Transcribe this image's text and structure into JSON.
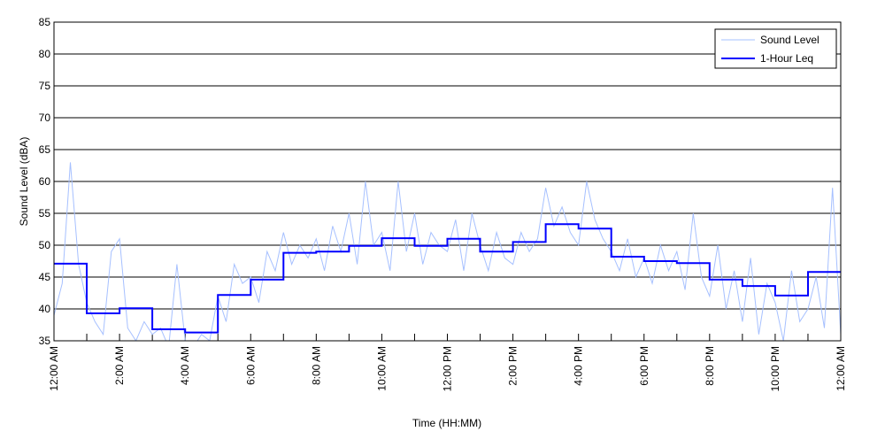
{
  "chart_data": {
    "type": "line",
    "title": "",
    "xlabel": "Time (HH:MM)",
    "ylabel": "Sound Level (dBA)",
    "ylim": [
      35,
      85
    ],
    "yticks": [
      35,
      40,
      45,
      50,
      55,
      60,
      65,
      70,
      75,
      80,
      85
    ],
    "xlim_hours": [
      0,
      24
    ],
    "xtick_labels": [
      "12:00 AM",
      "2:00 AM",
      "4:00 AM",
      "6:00 AM",
      "8:00 AM",
      "10:00 AM",
      "12:00 PM",
      "2:00 PM",
      "4:00 PM",
      "6:00 PM",
      "8:00 PM",
      "10:00 PM",
      "12:00 AM"
    ],
    "grid": "horizontal",
    "legend_placement": "top-right",
    "series": [
      {
        "name": "Sound Level",
        "color": "#a6c0ff",
        "interval_hours": 0.25,
        "values": [
          39,
          44,
          63,
          47,
          41,
          38,
          36,
          49,
          51,
          37,
          35,
          38,
          36,
          37,
          34,
          47,
          35,
          34,
          36,
          35,
          42,
          38,
          47,
          44,
          45,
          41,
          49,
          46,
          52,
          47,
          50,
          48,
          51,
          46,
          53,
          49,
          55,
          47,
          60,
          50,
          52,
          46,
          60,
          49,
          55,
          47,
          52,
          50,
          49,
          54,
          46,
          55,
          50,
          46,
          52,
          48,
          47,
          52,
          49,
          51,
          59,
          53,
          56,
          52,
          50,
          60,
          54,
          51,
          49,
          46,
          51,
          45,
          48,
          44,
          50,
          46,
          49,
          43,
          55,
          45,
          42,
          50,
          40,
          46,
          38,
          48,
          36,
          44,
          41,
          35,
          46,
          38,
          40,
          45,
          37,
          59,
          36
        ]
      },
      {
        "name": "1-Hour Leq",
        "color": "#0000ff",
        "interval_hours": 1,
        "values": [
          47.1,
          39.3,
          40.1,
          36.8,
          36.3,
          42.2,
          44.6,
          48.8,
          49.0,
          49.9,
          51.1,
          49.9,
          51.0,
          49.0,
          50.5,
          53.3,
          52.6,
          48.2,
          47.5,
          47.2,
          44.6,
          43.6,
          42.1,
          45.8
        ]
      }
    ]
  }
}
